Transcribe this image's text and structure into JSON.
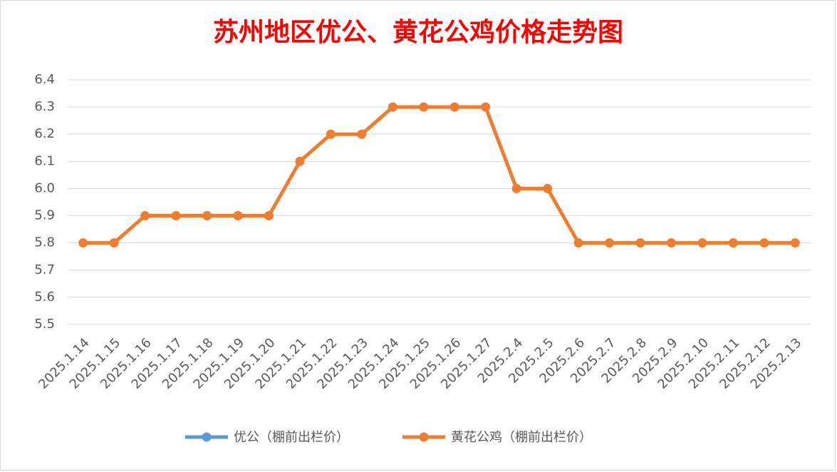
{
  "chart_data": {
    "type": "line",
    "title": "苏州地区优公、黄花公鸡价格走势图",
    "categories": [
      "2025.1.14",
      "2025.1.15",
      "2025.1.16",
      "2025.1.17",
      "2025.1.18",
      "2025.1.19",
      "2025.1.20",
      "2025.1.21",
      "2025.1.22",
      "2025.1.23",
      "2025.1.24",
      "2025.1.25",
      "2025.1.26",
      "2025.1.27",
      "2025.2.4",
      "2025.2.5",
      "2025.2.6",
      "2025.2.7",
      "2025.2.8",
      "2025.2.9",
      "2025.2.10",
      "2025.2.11",
      "2025.2.12",
      "2025.2.13"
    ],
    "series": [
      {
        "name": "优公（棚前出栏价）",
        "color": "#5B9BD5",
        "values": [
          null,
          null,
          null,
          null,
          null,
          null,
          null,
          null,
          null,
          null,
          null,
          null,
          null,
          null,
          null,
          null,
          null,
          null,
          null,
          null,
          null,
          null,
          null,
          null
        ]
      },
      {
        "name": "黄花公鸡（棚前出栏价）",
        "color": "#ED7D31",
        "values": [
          5.8,
          5.8,
          5.9,
          5.9,
          5.9,
          5.9,
          5.9,
          6.1,
          6.2,
          6.2,
          6.3,
          6.3,
          6.3,
          6.3,
          6.0,
          6.0,
          5.8,
          5.8,
          5.8,
          5.8,
          5.8,
          5.8,
          5.8,
          5.8
        ]
      }
    ],
    "ylim": [
      5.5,
      6.4
    ],
    "yticks": [
      5.5,
      5.6,
      5.7,
      5.8,
      5.9,
      {
        "value": 6,
        "label": "6.0"
      },
      6.1,
      6.2,
      6.3,
      6.4
    ],
    "grid": true,
    "legend": "bottom"
  }
}
